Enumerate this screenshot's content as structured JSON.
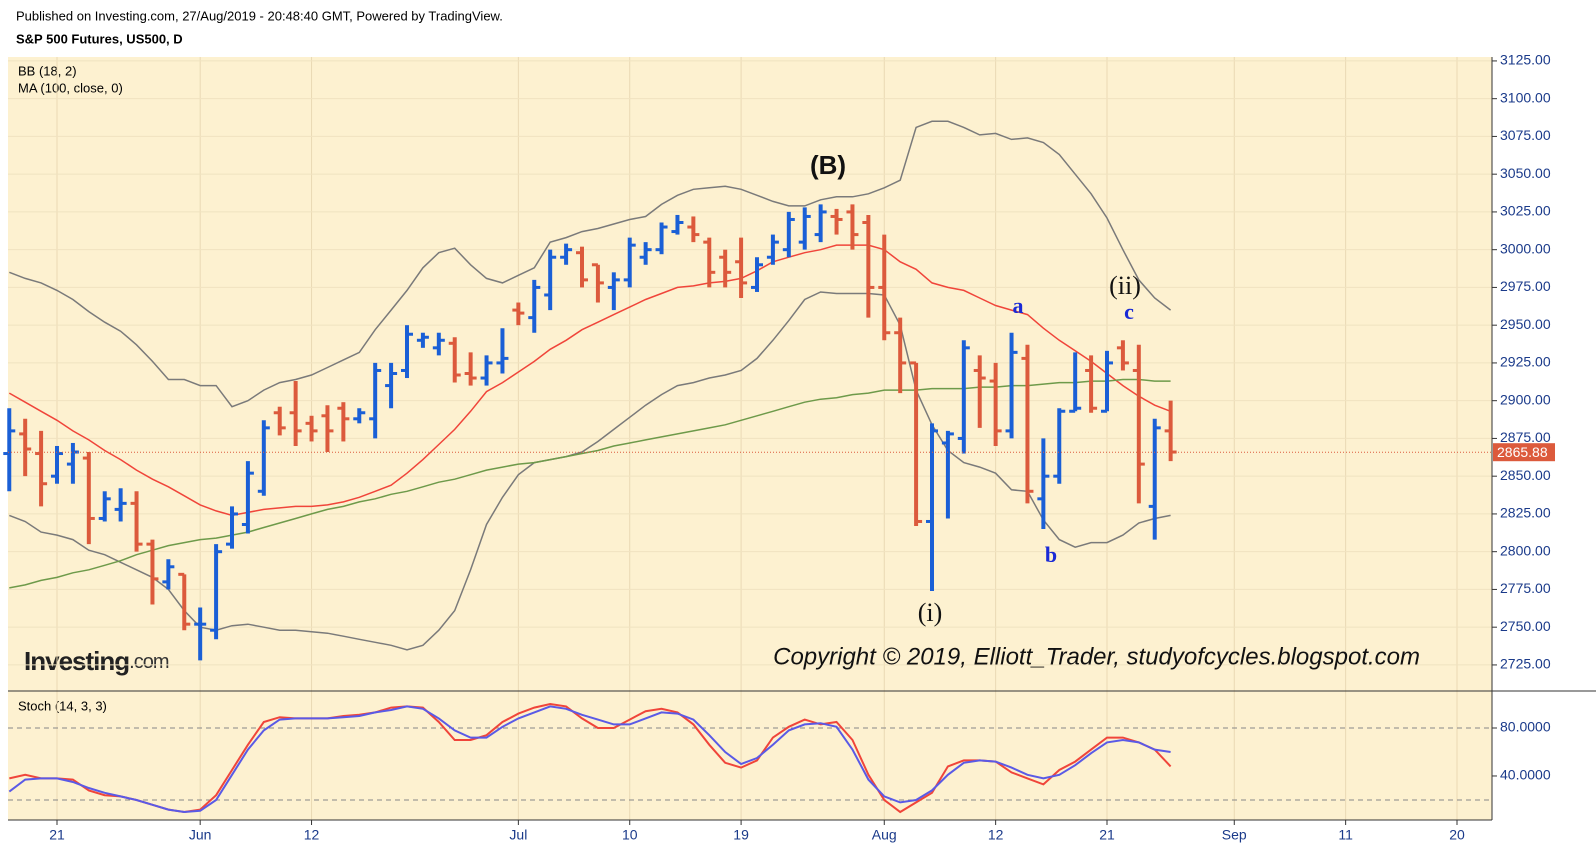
{
  "header": {
    "published": "Published on Investing.com, 27/Aug/2019 - 20:48:40 GMT, Powered by TradingView.",
    "symbol": "S&P 500 Futures, US500, D"
  },
  "logo": {
    "bold": "Investing",
    "rest": ".com"
  },
  "chart_data": [
    {
      "type": "ohlc",
      "up_color": "#1a5fd6",
      "down_color": "#dc5a3c",
      "indicators": [
        {
          "label": "BB (18, 2)",
          "lines": [
            {
              "color": "#7a7a7a",
              "values": [
                2985,
                2981,
                2978,
                2973,
                2967,
                2959,
                2952,
                2946,
                2937,
                2926,
                2914,
                2914,
                2910,
                2910,
                2896,
                2900,
                2907,
                2912,
                2914,
                2917,
                2922,
                2927,
                2932,
                2947,
                2960,
                2973,
                2988,
                2998,
                3001,
                2990,
                2981,
                2978,
                2983,
                2988,
                3005,
                3008,
                3012,
                3014,
                3017,
                3020,
                3022,
                3030,
                3036,
                3040,
                3041,
                3042,
                3040,
                3036,
                3032,
                3029,
                3029,
                3033,
                3035,
                3035,
                3037,
                3041,
                3046,
                3081,
                3085,
                3085,
                3081,
                3076,
                3077,
                3073,
                3074,
                3071,
                3063,
                3050,
                3037,
                3021,
                3000,
                2980,
                2968,
                2960
              ]
            },
            {
              "color": "#f0453a",
              "values": [
                2905,
                2899,
                2893,
                2887,
                2880,
                2874,
                2867,
                2861,
                2854,
                2848,
                2843,
                2837,
                2831,
                2827,
                2824,
                2826,
                2828,
                2829,
                2830,
                2830,
                2831,
                2833,
                2836,
                2840,
                2844,
                2852,
                2861,
                2871,
                2881,
                2893,
                2906,
                2912,
                2919,
                2926,
                2934,
                2940,
                2947,
                2952,
                2957,
                2962,
                2967,
                2971,
                2975,
                2976,
                2978,
                2979,
                2981,
                2986,
                2992,
                2995,
                2998,
                3000,
                3003,
                3003,
                3003,
                3000,
                2992,
                2987,
                2978,
                2975,
                2973,
                2968,
                2963,
                2960,
                2957,
                2948,
                2940,
                2933,
                2926,
                2918,
                2910,
                2903,
                2897,
                2893
              ]
            },
            {
              "color": "#7a7a7a",
              "values": [
                2824,
                2820,
                2813,
                2811,
                2808,
                2801,
                2798,
                2793,
                2788,
                2783,
                2775,
                2761,
                2750,
                2748,
                2751,
                2752,
                2750,
                2748,
                2748,
                2747,
                2746,
                2744,
                2742,
                2740,
                2738,
                2735,
                2738,
                2748,
                2761,
                2788,
                2818,
                2836,
                2851,
                2859,
                2861,
                2863,
                2866,
                2873,
                2881,
                2889,
                2897,
                2904,
                2910,
                2912,
                2915,
                2917,
                2920,
                2928,
                2940,
                2953,
                2967,
                2972,
                2971,
                2971,
                2971,
                2970,
                2950,
                2907,
                2884,
                2867,
                2859,
                2856,
                2852,
                2841,
                2840,
                2821,
                2808,
                2803,
                2806,
                2806,
                2811,
                2819,
                2822,
                2824
              ]
            }
          ]
        },
        {
          "label": "MA (100, close, 0)",
          "lines": [
            {
              "color": "#6e9a4a",
              "values": [
                2776,
                2778,
                2781,
                2783,
                2786,
                2788,
                2791,
                2794,
                2798,
                2801,
                2804,
                2806,
                2808,
                2809,
                2811,
                2813,
                2816,
                2819,
                2822,
                2825,
                2828,
                2830,
                2833,
                2835,
                2838,
                2840,
                2843,
                2846,
                2848,
                2851,
                2854,
                2856,
                2858,
                2859,
                2861,
                2863,
                2865,
                2867,
                2870,
                2872,
                2874,
                2876,
                2878,
                2880,
                2882,
                2884,
                2887,
                2890,
                2893,
                2896,
                2899,
                2901,
                2902,
                2904,
                2905,
                2907,
                2907,
                2907,
                2908,
                2908,
                2908,
                2909,
                2909,
                2910,
                2910,
                2911,
                2912,
                2912,
                2913,
                2913,
                2914,
                2914,
                2913,
                2913
              ]
            }
          ]
        }
      ],
      "x": [
        0,
        1,
        2,
        3,
        4,
        5,
        6,
        7,
        8,
        9,
        10,
        11,
        12,
        13,
        14,
        15,
        16,
        17,
        18,
        19,
        20,
        21,
        22,
        23,
        24,
        25,
        26,
        27,
        28,
        29,
        30,
        31,
        32,
        33,
        34,
        35,
        36,
        37,
        38,
        39,
        40,
        41,
        42,
        43,
        44,
        45,
        46,
        47,
        48,
        49,
        50,
        51,
        52,
        53,
        54,
        55,
        56,
        57,
        58,
        59,
        60,
        61,
        62,
        63,
        64,
        65,
        66,
        67,
        68,
        69,
        70,
        71,
        72,
        73
      ],
      "open": [
        2865,
        2878,
        2865,
        2850,
        2858,
        2862,
        2822,
        2828,
        2832,
        2805,
        2780,
        2785,
        2752,
        2748,
        2805,
        2818,
        2840,
        2892,
        2892,
        2885,
        2890,
        2895,
        2888,
        2888,
        2910,
        2920,
        2940,
        2935,
        2938,
        2918,
        2915,
        2925,
        2960,
        2955,
        2970,
        2995,
        2998,
        2990,
        2975,
        2980,
        2995,
        3000,
        3012,
        3015,
        3005,
        2995,
        2992,
        2975,
        2995,
        3000,
        3005,
        3010,
        3022,
        3025,
        3018,
        2975,
        2945,
        2925,
        2820,
        2872,
        2875,
        2920,
        2913,
        2880,
        2928,
        2835,
        2850,
        2893,
        2920,
        2893,
        2935,
        2920,
        2830,
        2880
      ],
      "high": [
        2895,
        2888,
        2880,
        2870,
        2872,
        2866,
        2840,
        2842,
        2840,
        2808,
        2795,
        2785,
        2763,
        2805,
        2830,
        2860,
        2887,
        2896,
        2913,
        2890,
        2897,
        2899,
        2895,
        2925,
        2925,
        2950,
        2945,
        2945,
        2942,
        2932,
        2930,
        2948,
        2965,
        2980,
        3000,
        3004,
        3002,
        2990,
        2985,
        3008,
        3005,
        3018,
        3023,
        3022,
        3008,
        3000,
        3008,
        2995,
        3010,
        3025,
        3028,
        3030,
        3027,
        3030,
        3023,
        3010,
        2955,
        2925,
        2885,
        2880,
        2940,
        2930,
        2925,
        2945,
        2937,
        2875,
        2895,
        2932,
        2930,
        2933,
        2940,
        2937,
        2888,
        2900
      ],
      "low": [
        2840,
        2850,
        2830,
        2845,
        2845,
        2805,
        2820,
        2820,
        2800,
        2765,
        2775,
        2748,
        2728,
        2742,
        2802,
        2812,
        2837,
        2877,
        2870,
        2873,
        2866,
        2873,
        2885,
        2875,
        2895,
        2915,
        2935,
        2930,
        2912,
        2910,
        2910,
        2918,
        2950,
        2945,
        2960,
        2990,
        2975,
        2965,
        2960,
        2975,
        2990,
        2997,
        3010,
        3005,
        2975,
        2975,
        2968,
        2972,
        2990,
        2995,
        3000,
        3005,
        3010,
        3000,
        2955,
        2940,
        2905,
        2817,
        2774,
        2822,
        2865,
        2882,
        2870,
        2875,
        2832,
        2815,
        2845,
        2893,
        2892,
        2893,
        2920,
        2832,
        2808,
        2860
      ],
      "close": [
        2880,
        2868,
        2845,
        2865,
        2866,
        2822,
        2835,
        2832,
        2805,
        2782,
        2790,
        2752,
        2752,
        2800,
        2825,
        2852,
        2882,
        2882,
        2880,
        2880,
        2880,
        2888,
        2892,
        2920,
        2918,
        2944,
        2942,
        2940,
        2917,
        2915,
        2925,
        2928,
        2958,
        2975,
        2995,
        3000,
        2980,
        2978,
        2980,
        3003,
        3000,
        3015,
        3018,
        3010,
        2985,
        2985,
        2978,
        2990,
        3005,
        3020,
        3022,
        3025,
        3020,
        3010,
        2975,
        2945,
        2925,
        2820,
        2880,
        2878,
        2935,
        2915,
        2880,
        2932,
        2840,
        2850,
        2893,
        2895,
        2895,
        2925,
        2925,
        2858,
        2882,
        2866
      ],
      "last_price": 2865.88,
      "last_color": "#dc5a3c",
      "xlim": [
        -0.08,
        93.2
      ],
      "ylim": [
        2708.4,
        3127.6
      ],
      "yticks": [
        {
          "value": 2725,
          "label": "2725.00"
        },
        {
          "value": 2750,
          "label": "2750.00"
        },
        {
          "value": 2775,
          "label": "2775.00"
        },
        {
          "value": 2800,
          "label": "2800.00"
        },
        {
          "value": 2825,
          "label": "2825.00"
        },
        {
          "value": 2850,
          "label": "2850.00"
        },
        {
          "value": 2875,
          "label": "2875.00"
        },
        {
          "value": 2900,
          "label": "2900.00"
        },
        {
          "value": 2925,
          "label": "2925.00"
        },
        {
          "value": 2950,
          "label": "2950.00"
        },
        {
          "value": 2975,
          "label": "2975.00"
        },
        {
          "value": 3000,
          "label": "3000.00"
        },
        {
          "value": 3025,
          "label": "3025.00"
        },
        {
          "value": 3050,
          "label": "3050.00"
        },
        {
          "value": 3075,
          "label": "3075.00"
        },
        {
          "value": 3100,
          "label": "3100.00"
        },
        {
          "value": 3125,
          "label": "3125.00"
        }
      ],
      "grid": true,
      "annotations": [
        "(B)",
        "a",
        "b",
        "c",
        "(ii)",
        "(i)",
        "Copyright © 2019, Elliott_Trader, studyofcycles.blogspot.com"
      ]
    },
    {
      "type": "line",
      "title": "Stoch (14, 3, 3)",
      "x": [
        0,
        1,
        2,
        3,
        4,
        5,
        6,
        7,
        8,
        9,
        10,
        11,
        12,
        13,
        14,
        15,
        16,
        17,
        18,
        19,
        20,
        21,
        22,
        23,
        24,
        25,
        26,
        27,
        28,
        29,
        30,
        31,
        32,
        33,
        34,
        35,
        36,
        37,
        38,
        39,
        40,
        41,
        42,
        43,
        44,
        45,
        46,
        47,
        48,
        49,
        50,
        51,
        52,
        53,
        54,
        55,
        56,
        57,
        58,
        59,
        60,
        61,
        62,
        63,
        64,
        65,
        66,
        67,
        68,
        69,
        70,
        71,
        72,
        73
      ],
      "series": [
        {
          "color": "#f0453a",
          "values": [
            38,
            41,
            38,
            38,
            37,
            28,
            24,
            23,
            20,
            16,
            12,
            10,
            12,
            24,
            45,
            66,
            85,
            89,
            88,
            88,
            88,
            90,
            91,
            93,
            97,
            98,
            97,
            85,
            70,
            70,
            74,
            85,
            92,
            97,
            100,
            98,
            88,
            80,
            80,
            87,
            94,
            96,
            93,
            83,
            66,
            51,
            47,
            53,
            72,
            81,
            87,
            83,
            85,
            70,
            41,
            20,
            10,
            18,
            26,
            48,
            53,
            53,
            52,
            43,
            38,
            33,
            45,
            52,
            62,
            72,
            72,
            68,
            62,
            48
          ]
        },
        {
          "color": "#5a5ae6",
          "values": [
            27,
            37,
            38,
            38,
            35,
            30,
            26,
            23,
            20,
            16,
            12,
            10,
            11,
            20,
            41,
            62,
            78,
            87,
            88,
            88,
            88,
            89,
            90,
            93,
            95,
            98,
            96,
            88,
            78,
            72,
            72,
            81,
            88,
            93,
            98,
            96,
            91,
            87,
            83,
            83,
            88,
            93,
            92,
            87,
            74,
            60,
            50,
            55,
            66,
            78,
            83,
            84,
            81,
            62,
            37,
            23,
            18,
            20,
            28,
            41,
            51,
            53,
            52,
            47,
            41,
            38,
            41,
            49,
            59,
            68,
            70,
            68,
            62,
            60
          ]
        }
      ],
      "hlines": [
        80,
        20
      ],
      "xlim": [
        -0.08,
        93.2
      ],
      "ylim": [
        3.3,
        110
      ],
      "yticks": [
        {
          "value": 80,
          "label": "80.0000"
        },
        {
          "value": 40,
          "label": "40.0000"
        }
      ],
      "xticks": [
        {
          "value": 3,
          "label": "21"
        },
        {
          "value": 12,
          "label": "Jun"
        },
        {
          "value": 19,
          "label": "12"
        },
        {
          "value": 32,
          "label": "Jul"
        },
        {
          "value": 39,
          "label": "10"
        },
        {
          "value": 46,
          "label": "19"
        },
        {
          "value": 55,
          "label": "Aug"
        },
        {
          "value": 62,
          "label": "12"
        },
        {
          "value": 69,
          "label": "21"
        },
        {
          "value": 77,
          "label": "Sep"
        },
        {
          "value": 84,
          "label": "11"
        },
        {
          "value": 91,
          "label": "20"
        }
      ]
    }
  ]
}
